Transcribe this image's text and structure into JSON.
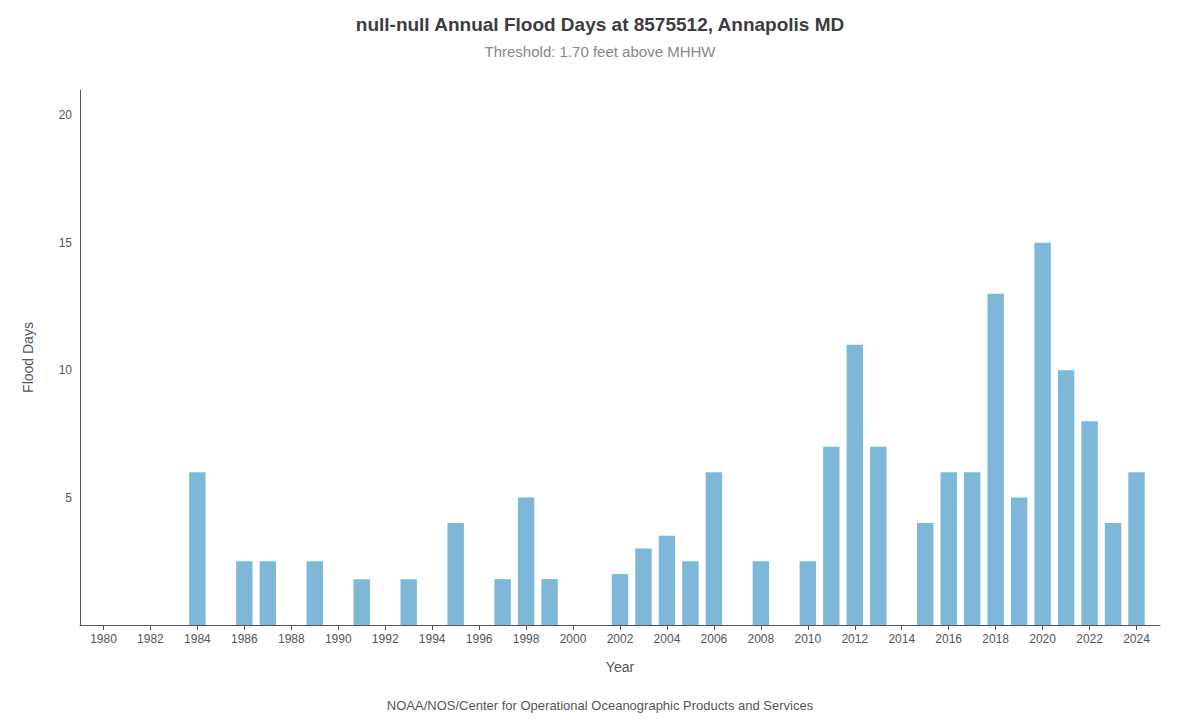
{
  "chart_data": {
    "type": "bar",
    "title": "null-null Annual Flood Days at 8575512, Annapolis MD",
    "subtitle": "Threshold: 1.70 feet above MHHW",
    "xlabel": "Year",
    "ylabel": "Flood Days",
    "annotations": [
      "NOAA/NOS/Center for Operational Oceanographic Products and Services"
    ],
    "x": [
      1980,
      1981,
      1982,
      1983,
      1984,
      1985,
      1986,
      1987,
      1988,
      1989,
      1990,
      1991,
      1992,
      1993,
      1994,
      1995,
      1996,
      1997,
      1998,
      1999,
      2000,
      2001,
      2002,
      2003,
      2004,
      2005,
      2006,
      2007,
      2008,
      2009,
      2010,
      2011,
      2012,
      2013,
      2014,
      2015,
      2016,
      2017,
      2018,
      2019,
      2020,
      2021,
      2022,
      2023,
      2024
    ],
    "values": [
      0,
      0,
      0,
      0,
      6,
      0,
      2.5,
      2.5,
      0,
      2.5,
      0,
      1.8,
      0,
      1.8,
      0,
      4,
      0,
      1.8,
      5,
      1.8,
      0,
      0,
      2,
      3,
      3.5,
      2.5,
      6,
      0,
      2.5,
      0,
      2.5,
      7,
      11,
      7,
      0,
      4,
      6,
      6,
      13,
      5,
      15,
      10,
      8,
      4,
      6
    ],
    "color": "#7EB8D8",
    "xlim": [
      1979,
      2025
    ],
    "xticks": [
      1980,
      1982,
      1984,
      1986,
      1988,
      1990,
      1992,
      1994,
      1996,
      1998,
      2000,
      2002,
      2004,
      2006,
      2008,
      2010,
      2012,
      2014,
      2016,
      2018,
      2020,
      2022,
      2024
    ],
    "ylim": [
      0,
      21
    ],
    "yticks": [
      5,
      10,
      15,
      20
    ],
    "grid": false
  }
}
